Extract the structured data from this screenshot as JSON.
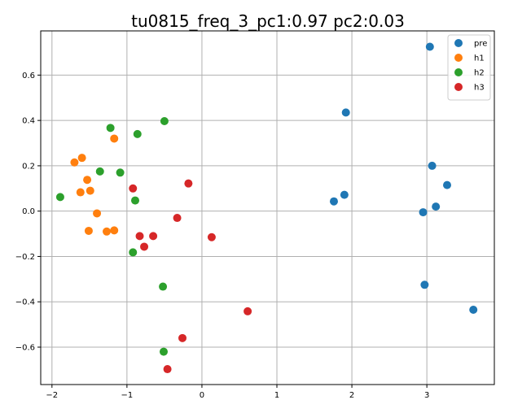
{
  "chart_data": {
    "type": "scatter",
    "title": "tu0815_freq_3_pc1:0.97 pc2:0.03",
    "xlabel": "",
    "ylabel": "",
    "xlim": [
      -2.15,
      3.9
    ],
    "ylim": [
      -0.765,
      0.795
    ],
    "xticks": [
      -2,
      -1,
      0,
      1,
      2,
      3
    ],
    "yticks": [
      -0.6,
      -0.4,
      -0.2,
      0.0,
      0.2,
      0.4,
      0.6
    ],
    "grid": true,
    "legend_position": "top-right",
    "series": [
      {
        "name": "pre",
        "color": "#1f77b4",
        "points": [
          {
            "x": 3.04,
            "y": 0.725
          },
          {
            "x": 1.92,
            "y": 0.435
          },
          {
            "x": 3.07,
            "y": 0.2
          },
          {
            "x": 3.27,
            "y": 0.115
          },
          {
            "x": 1.9,
            "y": 0.072
          },
          {
            "x": 1.76,
            "y": 0.043
          },
          {
            "x": 3.12,
            "y": 0.02
          },
          {
            "x": 2.95,
            "y": -0.005
          },
          {
            "x": 2.97,
            "y": -0.325
          },
          {
            "x": 3.62,
            "y": -0.435
          }
        ]
      },
      {
        "name": "h1",
        "color": "#ff7f0e",
        "points": [
          {
            "x": -1.17,
            "y": 0.32
          },
          {
            "x": -1.6,
            "y": 0.235
          },
          {
            "x": -1.7,
            "y": 0.215
          },
          {
            "x": -1.53,
            "y": 0.138
          },
          {
            "x": -1.49,
            "y": 0.09
          },
          {
            "x": -1.62,
            "y": 0.083
          },
          {
            "x": -1.4,
            "y": -0.01
          },
          {
            "x": -1.17,
            "y": -0.085
          },
          {
            "x": -1.27,
            "y": -0.09
          },
          {
            "x": -1.51,
            "y": -0.087
          }
        ]
      },
      {
        "name": "h2",
        "color": "#2ca02c",
        "points": [
          {
            "x": -0.5,
            "y": 0.397
          },
          {
            "x": -1.22,
            "y": 0.367
          },
          {
            "x": -0.86,
            "y": 0.34
          },
          {
            "x": -1.36,
            "y": 0.175
          },
          {
            "x": -1.09,
            "y": 0.17
          },
          {
            "x": -1.89,
            "y": 0.062
          },
          {
            "x": -0.89,
            "y": 0.047
          },
          {
            "x": -0.92,
            "y": -0.182
          },
          {
            "x": -0.52,
            "y": -0.333
          },
          {
            "x": -0.51,
            "y": -0.62
          }
        ]
      },
      {
        "name": "h3",
        "color": "#d62728",
        "points": [
          {
            "x": -0.18,
            "y": 0.122
          },
          {
            "x": -0.92,
            "y": 0.1
          },
          {
            "x": -0.33,
            "y": -0.03
          },
          {
            "x": 0.13,
            "y": -0.115
          },
          {
            "x": -0.83,
            "y": -0.11
          },
          {
            "x": -0.65,
            "y": -0.11
          },
          {
            "x": -0.77,
            "y": -0.157
          },
          {
            "x": 0.61,
            "y": -0.442
          },
          {
            "x": -0.26,
            "y": -0.56
          },
          {
            "x": -0.46,
            "y": -0.697
          }
        ]
      }
    ]
  }
}
